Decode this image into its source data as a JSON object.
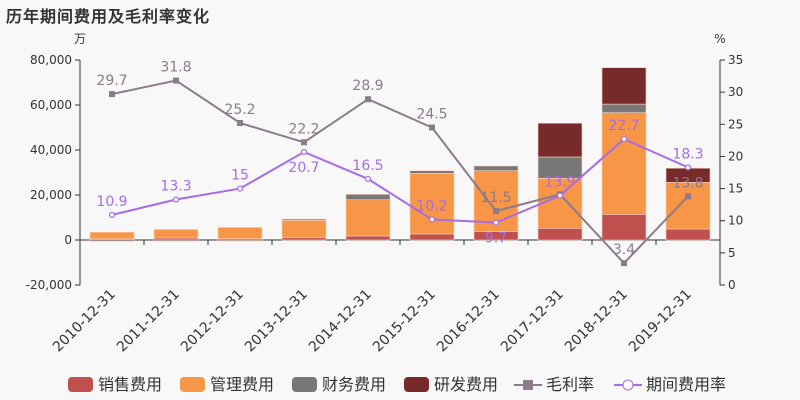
{
  "chart_data": {
    "type": "bar",
    "title": "历年期间费用及毛利率变化",
    "ylabel_left": "万",
    "ylabel_right": "%",
    "ylim_left": [
      -20000,
      80000
    ],
    "ylim_right": [
      0,
      35
    ],
    "yticks_left": [
      "-20,000",
      "0",
      "20,000",
      "40,000",
      "60,000",
      "80,000"
    ],
    "yticks_right": [
      "0",
      "5",
      "10",
      "15",
      "20",
      "25",
      "30",
      "35"
    ],
    "categories": [
      "2010-12-31",
      "2011-12-31",
      "2012-12-31",
      "2013-12-31",
      "2014-12-31",
      "2015-12-31",
      "2016-12-31",
      "2017-12-31",
      "2018-12-31",
      "2019-12-31"
    ],
    "bar_series": [
      {
        "name": "销售费用",
        "color": "#c0504d",
        "values": [
          500,
          900,
          600,
          1000,
          1800,
          2700,
          3700,
          5200,
          11400,
          4900
        ]
      },
      {
        "name": "管理费用",
        "color": "#f79646",
        "values": [
          3000,
          3800,
          5000,
          7700,
          16100,
          26900,
          27100,
          22200,
          45200,
          20700
        ]
      },
      {
        "name": "财务费用",
        "color": "#777777",
        "values": [
          -600,
          -500,
          -400,
          600,
          2400,
          1200,
          2100,
          9500,
          3800,
          0
        ]
      },
      {
        "name": "研发费用",
        "color": "#772a2a",
        "values": [
          0,
          0,
          0,
          0,
          0,
          0,
          0,
          15000,
          16200,
          6300
        ]
      }
    ],
    "line_series": [
      {
        "name": "毛利率",
        "color": "#8c7b8c",
        "values": [
          29.7,
          31.8,
          25.2,
          22.2,
          28.9,
          24.5,
          11.5,
          14.1,
          3.4,
          13.8
        ],
        "labels": [
          "29.7",
          "31.8",
          "25.2",
          "22.2",
          "28.9",
          "24.5",
          "11.5",
          "",
          "3.4",
          "13.8"
        ]
      },
      {
        "name": "期间费用率",
        "color": "#a66be8",
        "values": [
          10.9,
          13.3,
          15,
          20.7,
          16.5,
          10.2,
          9.7,
          13.9,
          22.7,
          18.3
        ],
        "labels": [
          "10.9",
          "13.3",
          "15",
          "20.7",
          "16.5",
          "10.2",
          "9.7",
          "13.9",
          "22.7",
          "18.3"
        ]
      }
    ],
    "legend_position": "bottom"
  }
}
